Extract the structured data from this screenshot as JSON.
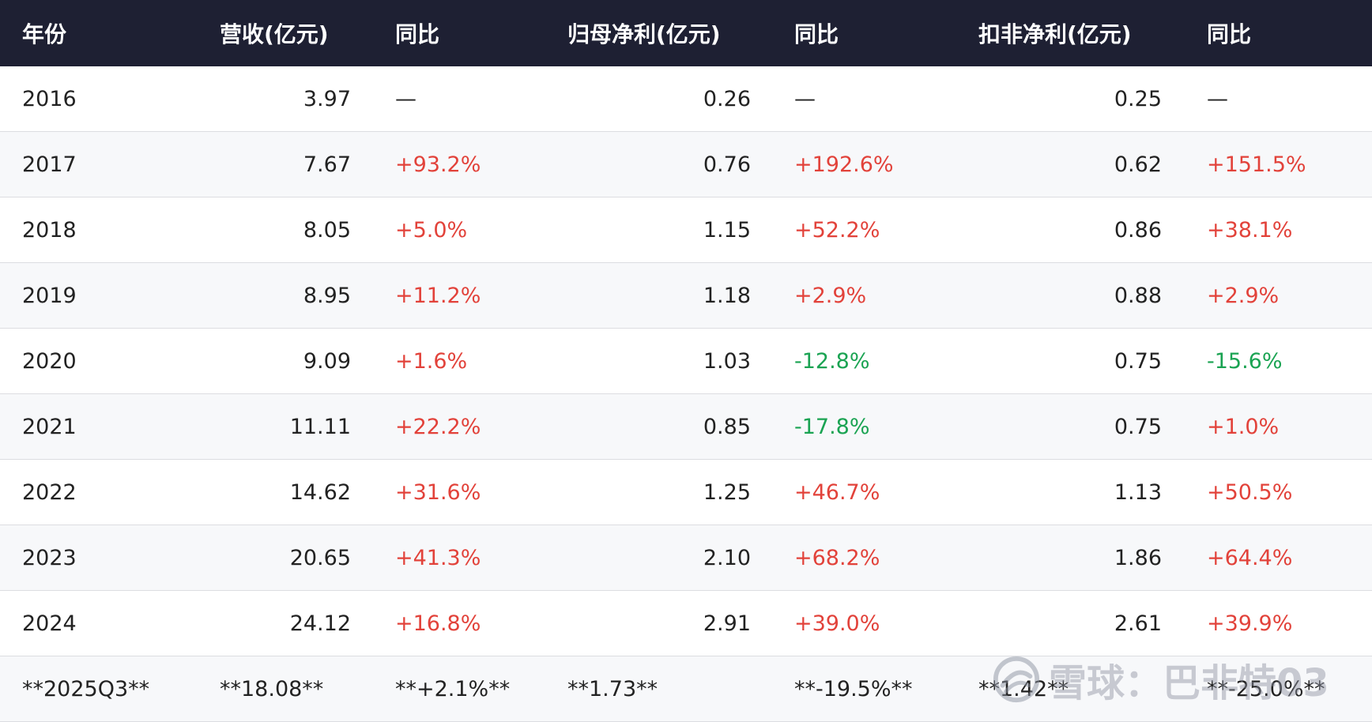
{
  "table": {
    "headers": [
      "年份",
      "营收(亿元)",
      "同比",
      "归母净利(亿元)",
      "同比",
      "扣非净利(亿元)",
      "同比"
    ],
    "rows": [
      {
        "year": "2016",
        "rev": "3.97",
        "rev_yoy": "—",
        "rev_dir": "flat",
        "np": "0.26",
        "np_yoy": "—",
        "np_dir": "flat",
        "dnp": "0.25",
        "dnp_yoy": "—",
        "dnp_dir": "flat"
      },
      {
        "year": "2017",
        "rev": "7.67",
        "rev_yoy": "+93.2%",
        "rev_dir": "up",
        "np": "0.76",
        "np_yoy": "+192.6%",
        "np_dir": "up",
        "dnp": "0.62",
        "dnp_yoy": "+151.5%",
        "dnp_dir": "up"
      },
      {
        "year": "2018",
        "rev": "8.05",
        "rev_yoy": "+5.0%",
        "rev_dir": "up",
        "np": "1.15",
        "np_yoy": "+52.2%",
        "np_dir": "up",
        "dnp": "0.86",
        "dnp_yoy": "+38.1%",
        "dnp_dir": "up"
      },
      {
        "year": "2019",
        "rev": "8.95",
        "rev_yoy": "+11.2%",
        "rev_dir": "up",
        "np": "1.18",
        "np_yoy": "+2.9%",
        "np_dir": "up",
        "dnp": "0.88",
        "dnp_yoy": "+2.9%",
        "dnp_dir": "up"
      },
      {
        "year": "2020",
        "rev": "9.09",
        "rev_yoy": "+1.6%",
        "rev_dir": "up",
        "np": "1.03",
        "np_yoy": "-12.8%",
        "np_dir": "down",
        "dnp": "0.75",
        "dnp_yoy": "-15.6%",
        "dnp_dir": "down"
      },
      {
        "year": "2021",
        "rev": "11.11",
        "rev_yoy": "+22.2%",
        "rev_dir": "up",
        "np": "0.85",
        "np_yoy": "-17.8%",
        "np_dir": "down",
        "dnp": "0.75",
        "dnp_yoy": "+1.0%",
        "dnp_dir": "up"
      },
      {
        "year": "2022",
        "rev": "14.62",
        "rev_yoy": "+31.6%",
        "rev_dir": "up",
        "np": "1.25",
        "np_yoy": "+46.7%",
        "np_dir": "up",
        "dnp": "1.13",
        "dnp_yoy": "+50.5%",
        "dnp_dir": "up"
      },
      {
        "year": "2023",
        "rev": "20.65",
        "rev_yoy": "+41.3%",
        "rev_dir": "up",
        "np": "2.10",
        "np_yoy": "+68.2%",
        "np_dir": "up",
        "dnp": "1.86",
        "dnp_yoy": "+64.4%",
        "dnp_dir": "up"
      },
      {
        "year": "2024",
        "rev": "24.12",
        "rev_yoy": "+16.8%",
        "rev_dir": "up",
        "np": "2.91",
        "np_yoy": "+39.0%",
        "np_dir": "up",
        "dnp": "2.61",
        "dnp_yoy": "+39.9%",
        "dnp_dir": "up"
      }
    ],
    "last_row": {
      "year": "**2025Q3**",
      "rev": "**18.08**",
      "rev_yoy": "**+2.1%**",
      "np": "**1.73**",
      "np_yoy": "**-19.5%**",
      "dnp": "**1.42**",
      "dnp_yoy": "**-25.0%**"
    }
  },
  "colors": {
    "header_bg": "#1e2033",
    "up": "#e2423a",
    "down": "#1aa352",
    "stripe": "#f7f8fa"
  },
  "watermark": {
    "icon": "snowball-logo-icon",
    "text": "雪球：巴非特03"
  }
}
